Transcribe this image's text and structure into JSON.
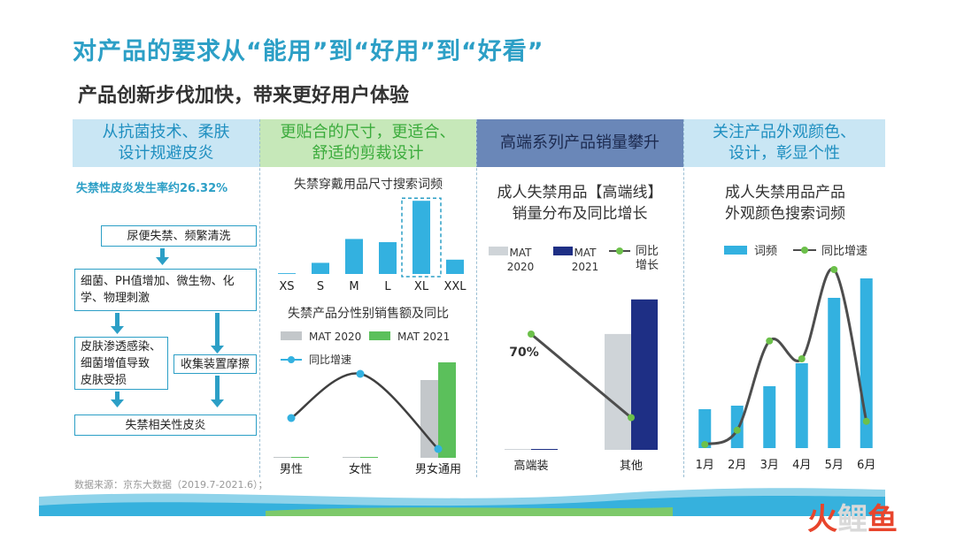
{
  "title": "对产品的要求从“能用”到“好用”到“好看”",
  "subtitle": "产品创新步伐加快，带来更好用户体验",
  "panels": [
    {
      "header": "从抗菌技术、柔肤\n设计规避皮炎",
      "header_bg": "#c9e6f4",
      "header_color": "#1f8fc0"
    },
    {
      "header": "更贴合的尺寸，更适合、\n舒适的剪裁设计",
      "header_bg": "#c6e8b9",
      "header_color": "#3bab3c"
    },
    {
      "header": "高端系列产品销量攀升",
      "header_bg": "#6a87b8",
      "header_color": "#1c2a4f"
    },
    {
      "header": "关注产品外观颜色、\n设计，彰显个性",
      "header_bg": "#c9e6f4",
      "header_color": "#1f8fc0"
    }
  ],
  "flow": {
    "rate_text": "失禁性皮炎发生率约26.32%",
    "steps": [
      "尿便失禁、频繁清洗",
      "细菌、PH值增加、微生物、化\n学、物理刺激",
      "皮肤渗透感染、\n细菌增值导致\n皮肤受损",
      "收集装置摩擦",
      "失禁相关性皮炎"
    ],
    "color": "#2c9fc6"
  },
  "chart_data": [
    {
      "type": "bar",
      "title": "失禁穿戴用品尺寸搜索词频",
      "categories": [
        "XS",
        "S",
        "M",
        "L",
        "XL",
        "XXL"
      ],
      "values": [
        1,
        14,
        44,
        40,
        92,
        18
      ],
      "color": "#33b1e0",
      "highlight": "XL"
    },
    {
      "type": "bar",
      "title": "失禁产品分性别销售额及同比",
      "categories": [
        "男性",
        "女性",
        "男女通用"
      ],
      "series": [
        {
          "name": "MAT 2020",
          "values": [
            0.5,
            0.5,
            88
          ],
          "color": "#c3c7ca"
        },
        {
          "name": "MAT 2021",
          "values": [
            1,
            1,
            108
          ],
          "color": "#5bc05b"
        }
      ],
      "line": {
        "name": "同比增速",
        "values": [
          45,
          95,
          10
        ],
        "color": "#33b1e0"
      }
    },
    {
      "type": "bar",
      "title": "成人失禁用品【高端线】\n销量分布及同比增长",
      "categories": [
        "高端装",
        "其他"
      ],
      "series": [
        {
          "name": "MAT\n2020",
          "values": [
            0.3,
            57
          ],
          "color": "#cfd4d8"
        },
        {
          "name": "MAT\n2021",
          "values": [
            0.3,
            74
          ],
          "color": "#1e2f85"
        }
      ],
      "line": {
        "name": "同比\n增长",
        "values": [
          70,
          25
        ],
        "color": "#4d4d4d"
      },
      "annotation": "70%"
    },
    {
      "type": "bar",
      "title": "成人失禁用品产品\n外观颜色搜索词频",
      "categories": [
        "1月",
        "2月",
        "3月",
        "4月",
        "5月",
        "6月"
      ],
      "series": [
        {
          "name": "词频",
          "values": [
            22,
            24,
            35,
            48,
            85,
            96
          ],
          "color": "#33b1e0"
        }
      ],
      "line": {
        "name": "同比增速",
        "values": [
          2,
          10,
          60,
          50,
          100,
          15
        ],
        "color": "#4d4d4d"
      }
    }
  ],
  "footer": "数据来源：京东大数据（2019.7-2021.6）；",
  "watermark": "火鲤鱼"
}
